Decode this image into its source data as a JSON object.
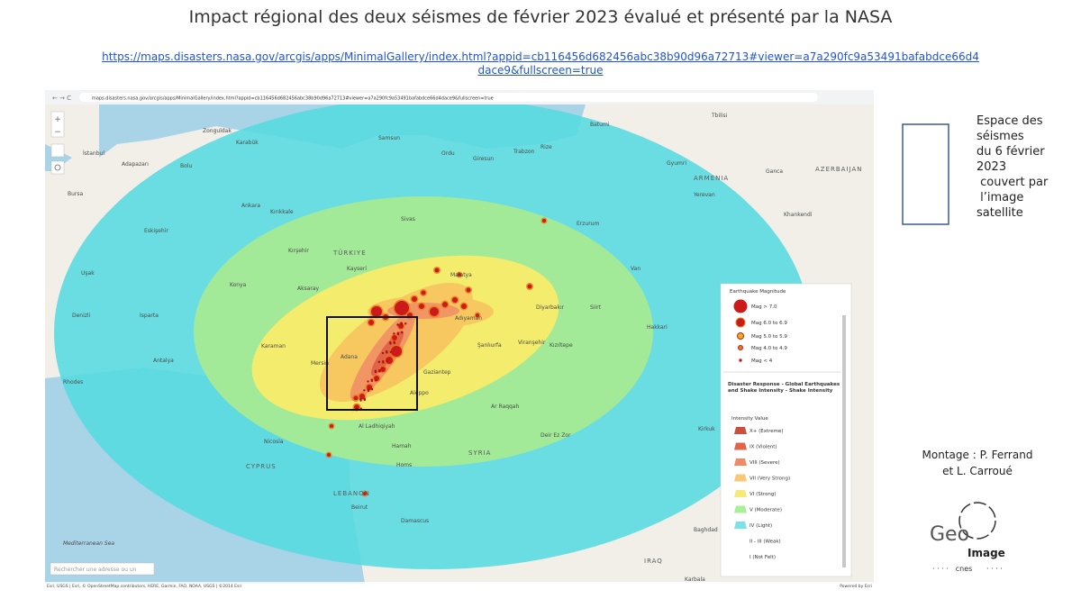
{
  "header": {
    "title": "Impact régional des deux séismes de février 2023 évalué et présenté par la NASA",
    "link": "https://maps.disasters.nasa.gov/arcgis/apps/MinimalGallery/index.html?appid=cb116456d682456abc38b90d96a72713#viewer=a7a290fc9a53491bafabdce66d4dace9&fullscreen=true"
  },
  "browser": {
    "url": "maps.disasters.nasa.gov/arcgis/apps/MinimalGallery/index.html?appid=cb116456d682456abc38b90d96a72713#viewer=a7a290fc9a53491bafabdce66d4dace9&fullscreen=true"
  },
  "map": {
    "places": [
      "Zonguldak",
      "Karabük",
      "İstanbul",
      "Adapazarı",
      "Bolu",
      "Bursa",
      "Ankara",
      "Kırıkkale",
      "Eskişehir",
      "Samsun",
      "Ordu",
      "Giresun",
      "Trabzon",
      "Rize",
      "Batumi",
      "Tbilisi",
      "Gyumri",
      "Yerevan",
      "Ganca",
      "Khankendi",
      "Sivas",
      "Kayseri",
      "Kırşehir",
      "Aksaray",
      "Konya",
      "Malatya",
      "Adıyaman",
      "Diyarbakır",
      "Siirt",
      "Van",
      "Erzurum",
      "Hakkari",
      "Karaman",
      "Antalya",
      "Denizli",
      "Isparta",
      "Uşak",
      "Mersin",
      "Adana",
      "Gaziantep",
      "Şanlıurfa",
      "Viranşehir",
      "Kızıltepe",
      "Aleppo",
      "Ar Raqqah",
      "Deir Ez Zor",
      "Al Ladhiqiyah",
      "Hamah",
      "Homs",
      "Nicosia",
      "Beirut",
      "Damascus",
      "Kirkuk",
      "Baghdad",
      "Karbala",
      "Rhodes"
    ],
    "countries": [
      "TÜRKIYE",
      "ARMENIA",
      "AZERBAIJAN",
      "CYPRUS",
      "LEBANON",
      "SYRIA",
      "IRAQ"
    ],
    "seas": [
      "Mediterranean Sea"
    ],
    "search_placeholder": "Rechercher une adresse ou un",
    "attribution": "Esri, USGS | Esri, © OpenStreetMap contributors, HERE, Garmin, FAO, NOAA, USGS | ©2014 Esri",
    "powered_by": "Powered by Esri"
  },
  "legend": {
    "magnitude_title": "Earthquake Magnitude",
    "magnitudes": [
      "Mag > 7.0",
      "Mag 6.0 to 6.9",
      "Mag 5.0 to 5.9",
      "Mag 4.0 to 4.9",
      "Mag < 4"
    ],
    "shake_title": "Disaster Response - Global Earthquakes and Shake Intensity - Shake Intensity",
    "intensity_heading": "Intensity Value",
    "intensities": [
      "X+ (Extreme)",
      "IX (Violent)",
      "VIII (Severe)",
      "VII (Very Strong)",
      "VI (Strong)",
      "V (Moderate)",
      "IV (Light)",
      "II - III (Weak)",
      "I (Not Felt)"
    ]
  },
  "side": {
    "box_label": [
      "Espace des",
      "séismes",
      "du 6 février",
      "2023",
      " couvert par",
      " l’image",
      "satellite"
    ],
    "credits": [
      "Montage : P. Ferrand",
      "et L. Carroué"
    ],
    "logo": [
      "Geo",
      "Image",
      "cnes"
    ]
  }
}
